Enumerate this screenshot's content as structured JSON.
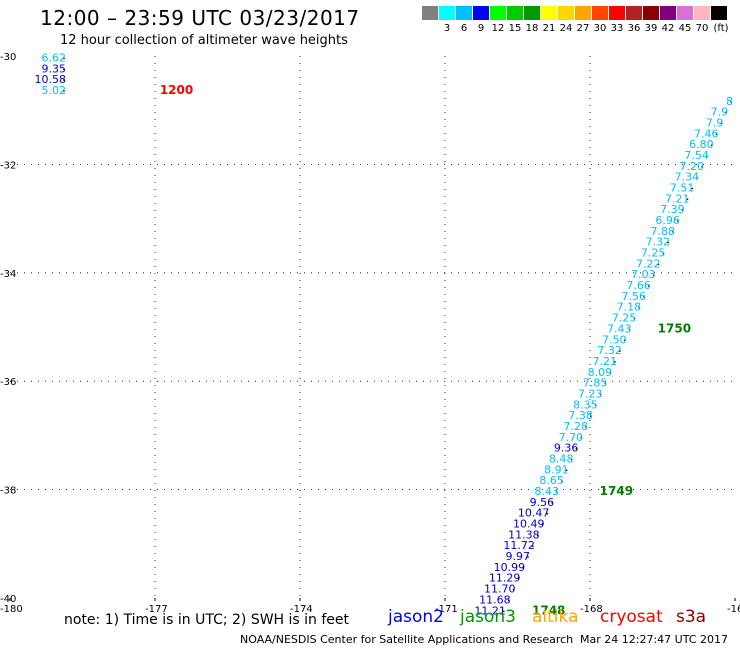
{
  "header": {
    "title": "12:00 – 23:59 UTC 03/23/2017",
    "subtitle": "12 hour collection of altimeter wave heights"
  },
  "scale": {
    "unit": "(ft)",
    "swatches": [
      {
        "color": "#808080",
        "label": ""
      },
      {
        "color": "#00ffff",
        "label": "3"
      },
      {
        "color": "#00bfff",
        "label": "6"
      },
      {
        "color": "#0000ff",
        "label": "9"
      },
      {
        "color": "#00ff00",
        "label": "12"
      },
      {
        "color": "#00cc00",
        "label": "15"
      },
      {
        "color": "#009900",
        "label": "18"
      },
      {
        "color": "#ffff00",
        "label": "21"
      },
      {
        "color": "#ffd700",
        "label": "24"
      },
      {
        "color": "#ffa500",
        "label": "27"
      },
      {
        "color": "#ff4500",
        "label": "30"
      },
      {
        "color": "#ff0000",
        "label": "33"
      },
      {
        "color": "#b22222",
        "label": "36"
      },
      {
        "color": "#8b0000",
        "label": "39"
      },
      {
        "color": "#800080",
        "label": "42"
      },
      {
        "color": "#da70d6",
        "label": "45"
      },
      {
        "color": "#ffb6c1",
        "label": "70"
      },
      {
        "color": "#000000",
        "label": ""
      }
    ]
  },
  "map": {
    "lon_ticks": [
      "-180",
      "-177",
      "-174",
      "-171",
      "-168",
      "-16"
    ],
    "lat_ticks": [
      "-30",
      "-32",
      "-34",
      "-36",
      "-38",
      "-40"
    ],
    "lon_range": [
      -180,
      -165
    ],
    "lat_range": [
      -40,
      -30
    ]
  },
  "tracks": [
    {
      "color": "#00bfff",
      "values": [
        {
          "lon": -178.8,
          "lat": -30.1,
          "label": "6.62",
          "color": "#00bfff"
        },
        {
          "lon": -178.8,
          "lat": -30.3,
          "label": "9.35",
          "color": "#0000cd"
        },
        {
          "lon": -178.8,
          "lat": -30.5,
          "label": "10.58",
          "color": "#0000cd"
        },
        {
          "lon": -178.8,
          "lat": -30.7,
          "label": "5.02",
          "color": "#00bfff"
        }
      ]
    },
    {
      "color": "#00bfff",
      "values": [
        {
          "lon": -165.0,
          "lat": -30.9,
          "label": "8",
          "color": "#00bfff"
        },
        {
          "lon": -165.1,
          "lat": -31.1,
          "label": "7.9",
          "color": "#00bfff"
        },
        {
          "lon": -165.2,
          "lat": -31.3,
          "label": "7.9",
          "color": "#00bfff"
        },
        {
          "lon": -165.3,
          "lat": -31.5,
          "label": "7.46",
          "color": "#00bfff"
        },
        {
          "lon": -165.4,
          "lat": -31.7,
          "label": "6.80",
          "color": "#00bfff"
        },
        {
          "lon": -165.5,
          "lat": -31.9,
          "label": "7.54",
          "color": "#00bfff"
        },
        {
          "lon": -165.6,
          "lat": -32.1,
          "label": "7.20",
          "color": "#00bfff"
        },
        {
          "lon": -165.7,
          "lat": -32.3,
          "label": "7.34",
          "color": "#00bfff"
        },
        {
          "lon": -165.8,
          "lat": -32.5,
          "label": "7.51",
          "color": "#00bfff"
        },
        {
          "lon": -165.9,
          "lat": -32.7,
          "label": "7.21",
          "color": "#00bfff"
        },
        {
          "lon": -166.0,
          "lat": -32.9,
          "label": "7.39",
          "color": "#00bfff"
        },
        {
          "lon": -166.1,
          "lat": -33.1,
          "label": "6.96",
          "color": "#00bfff"
        },
        {
          "lon": -166.2,
          "lat": -33.3,
          "label": "7.88",
          "color": "#00bfff"
        },
        {
          "lon": -166.3,
          "lat": -33.5,
          "label": "7.32",
          "color": "#00bfff"
        },
        {
          "lon": -166.4,
          "lat": -33.7,
          "label": "7.25",
          "color": "#00bfff"
        },
        {
          "lon": -166.5,
          "lat": -33.9,
          "label": "7.22",
          "color": "#00bfff"
        },
        {
          "lon": -166.6,
          "lat": -34.1,
          "label": "7.03",
          "color": "#00bfff"
        },
        {
          "lon": -166.7,
          "lat": -34.3,
          "label": "7.66",
          "color": "#00bfff"
        },
        {
          "lon": -166.8,
          "lat": -34.5,
          "label": "7.56",
          "color": "#00bfff"
        },
        {
          "lon": -166.9,
          "lat": -34.7,
          "label": "7.18",
          "color": "#00bfff"
        },
        {
          "lon": -167.0,
          "lat": -34.9,
          "label": "7.25",
          "color": "#00bfff"
        },
        {
          "lon": -167.1,
          "lat": -35.1,
          "label": "7.43",
          "color": "#00bfff"
        },
        {
          "lon": -167.2,
          "lat": -35.3,
          "label": "7.50",
          "color": "#00bfff"
        },
        {
          "lon": -167.3,
          "lat": -35.5,
          "label": "7.32",
          "color": "#00bfff"
        },
        {
          "lon": -167.4,
          "lat": -35.7,
          "label": "7.21",
          "color": "#00bfff"
        },
        {
          "lon": -167.5,
          "lat": -35.9,
          "label": "8.09",
          "color": "#00bfff"
        },
        {
          "lon": -167.6,
          "lat": -36.1,
          "label": "7.85",
          "color": "#00bfff"
        },
        {
          "lon": -167.7,
          "lat": -36.3,
          "label": "7.23",
          "color": "#00bfff"
        },
        {
          "lon": -167.8,
          "lat": -36.5,
          "label": "8.35",
          "color": "#00bfff"
        },
        {
          "lon": -167.9,
          "lat": -36.7,
          "label": "7.38",
          "color": "#00bfff"
        },
        {
          "lon": -168.0,
          "lat": -36.9,
          "label": "7.28",
          "color": "#00bfff"
        },
        {
          "lon": -168.1,
          "lat": -37.1,
          "label": "7.70",
          "color": "#00bfff"
        },
        {
          "lon": -168.2,
          "lat": -37.3,
          "label": "9.36",
          "color": "#0000cd"
        },
        {
          "lon": -168.3,
          "lat": -37.5,
          "label": "8.48",
          "color": "#00bfff"
        },
        {
          "lon": -168.4,
          "lat": -37.7,
          "label": "8.91",
          "color": "#00bfff"
        },
        {
          "lon": -168.5,
          "lat": -37.9,
          "label": "8.65",
          "color": "#00bfff"
        },
        {
          "lon": -168.6,
          "lat": -38.1,
          "label": "8.43",
          "color": "#00bfff"
        },
        {
          "lon": -168.7,
          "lat": -38.3,
          "label": "9.56",
          "color": "#0000cd"
        },
        {
          "lon": -168.8,
          "lat": -38.5,
          "label": "10.47",
          "color": "#0000cd"
        },
        {
          "lon": -168.9,
          "lat": -38.7,
          "label": "10.49",
          "color": "#0000cd"
        },
        {
          "lon": -169.0,
          "lat": -38.9,
          "label": "11.38",
          "color": "#0000cd"
        },
        {
          "lon": -169.1,
          "lat": -39.1,
          "label": "11.72",
          "color": "#0000cd"
        },
        {
          "lon": -169.2,
          "lat": -39.3,
          "label": "9.97",
          "color": "#0000cd"
        },
        {
          "lon": -169.3,
          "lat": -39.5,
          "label": "10.99",
          "color": "#0000cd"
        },
        {
          "lon": -169.4,
          "lat": -39.7,
          "label": "11.29",
          "color": "#0000cd"
        },
        {
          "lon": -169.5,
          "lat": -39.9,
          "label": "11.70",
          "color": "#0000cd"
        },
        {
          "lon": -169.6,
          "lat": -40.1,
          "label": "11.68",
          "color": "#0000cd"
        },
        {
          "lon": -169.7,
          "lat": -40.3,
          "label": "11.21",
          "color": "#0000cd"
        }
      ]
    }
  ],
  "time_labels": [
    {
      "label": "1200",
      "color": "#ff0000",
      "lon": -176.9,
      "lat": -30.7
    },
    {
      "label": "1750",
      "color": "#008000",
      "lon": -166.6,
      "lat": -35.1
    },
    {
      "label": "1749",
      "color": "#008000",
      "lon": -167.8,
      "lat": -38.1
    },
    {
      "label": "1748",
      "color": "#008000",
      "lon": -169.2,
      "lat": -40.3
    }
  ],
  "note": "note: 1) Time is in UTC; 2) SWH is in feet",
  "satellites": [
    {
      "name": "jason2",
      "color": "#0000ff"
    },
    {
      "name": "jason3",
      "color": "#009900"
    },
    {
      "name": "altika",
      "color": "#ffa500"
    },
    {
      "name": "cryosat",
      "color": "#ff0000"
    },
    {
      "name": "s3a",
      "color": "#8b0000"
    }
  ],
  "footer": {
    "org": "NOAA/NESDIS Center for Satellite Applications and Research",
    "timestamp": "Mar 24 12:27:47 UTC 2017"
  }
}
